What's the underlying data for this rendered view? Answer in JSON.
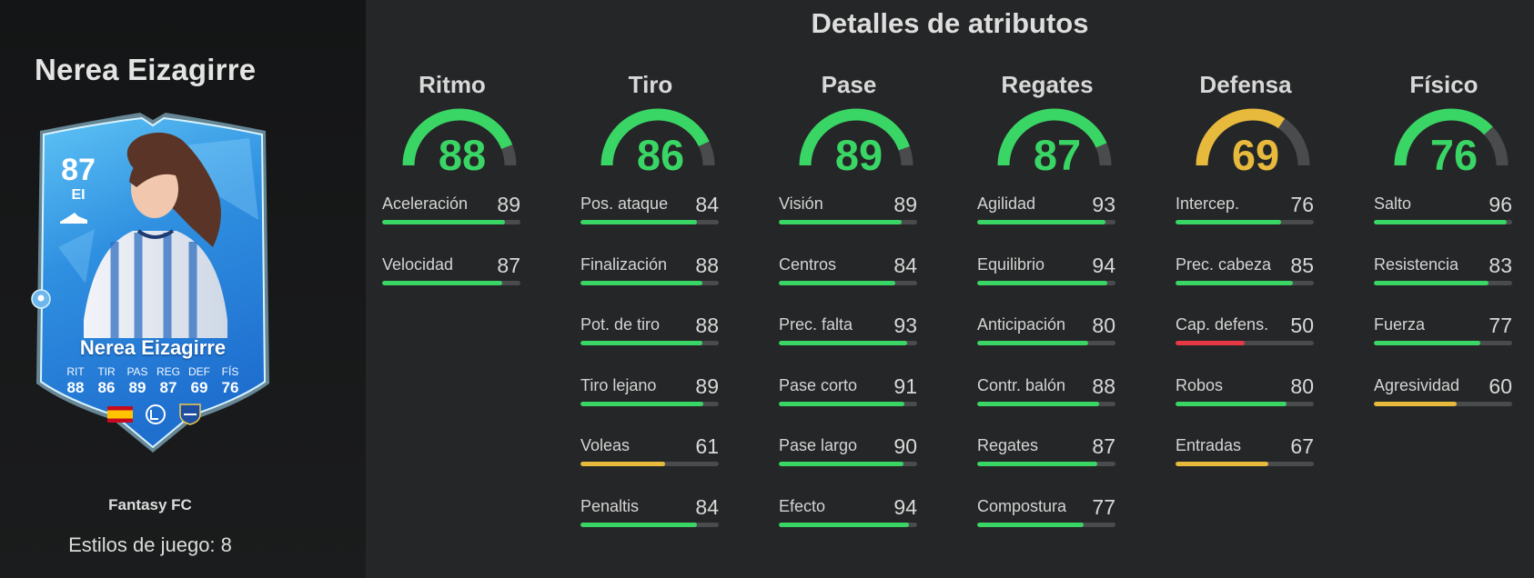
{
  "player": {
    "name": "Nerea Eizagirre",
    "version": "Fantasy FC",
    "playstyles": "Estilos de juego: 8",
    "card": {
      "rating": "87",
      "position": "EI",
      "name": "Nerea Eizagirre",
      "stats": [
        {
          "label": "RIT",
          "value": "88"
        },
        {
          "label": "TIR",
          "value": "86"
        },
        {
          "label": "PAS",
          "value": "89"
        },
        {
          "label": "REG",
          "value": "87"
        },
        {
          "label": "DEF",
          "value": "69"
        },
        {
          "label": "FÍS",
          "value": "76"
        }
      ],
      "badges": [
        "spain-flag-icon",
        "liga-f-icon",
        "real-sociedad-crest-icon"
      ]
    }
  },
  "section_title": "Detalles de atributos",
  "colors": {
    "green": "#39d565",
    "yellow": "#e7b93c",
    "red": "#e53945",
    "track": "#4a4b4c",
    "card_blue": "#2f8fe0"
  },
  "categories": [
    {
      "title": "Ritmo",
      "value": 88,
      "color": "green",
      "attributes": [
        {
          "label": "Aceleración",
          "value": 89,
          "color": "green"
        },
        {
          "label": "Velocidad",
          "value": 87,
          "color": "green"
        }
      ]
    },
    {
      "title": "Tiro",
      "value": 86,
      "color": "green",
      "attributes": [
        {
          "label": "Pos. ataque",
          "value": 84,
          "color": "green"
        },
        {
          "label": "Finalización",
          "value": 88,
          "color": "green"
        },
        {
          "label": "Pot. de tiro",
          "value": 88,
          "color": "green"
        },
        {
          "label": "Tiro lejano",
          "value": 89,
          "color": "green"
        },
        {
          "label": "Voleas",
          "value": 61,
          "color": "yellow"
        },
        {
          "label": "Penaltis",
          "value": 84,
          "color": "green"
        }
      ]
    },
    {
      "title": "Pase",
      "value": 89,
      "color": "green",
      "attributes": [
        {
          "label": "Visión",
          "value": 89,
          "color": "green"
        },
        {
          "label": "Centros",
          "value": 84,
          "color": "green"
        },
        {
          "label": "Prec. falta",
          "value": 93,
          "color": "green"
        },
        {
          "label": "Pase corto",
          "value": 91,
          "color": "green"
        },
        {
          "label": "Pase largo",
          "value": 90,
          "color": "green"
        },
        {
          "label": "Efecto",
          "value": 94,
          "color": "green"
        }
      ]
    },
    {
      "title": "Regates",
      "value": 87,
      "color": "green",
      "attributes": [
        {
          "label": "Agilidad",
          "value": 93,
          "color": "green"
        },
        {
          "label": "Equilibrio",
          "value": 94,
          "color": "green"
        },
        {
          "label": "Anticipación",
          "value": 80,
          "color": "green"
        },
        {
          "label": "Contr. balón",
          "value": 88,
          "color": "green"
        },
        {
          "label": "Regates",
          "value": 87,
          "color": "green"
        },
        {
          "label": "Compostura",
          "value": 77,
          "color": "green"
        }
      ]
    },
    {
      "title": "Defensa",
      "value": 69,
      "color": "yellow",
      "attributes": [
        {
          "label": "Intercep.",
          "value": 76,
          "color": "green"
        },
        {
          "label": "Prec. cabeza",
          "value": 85,
          "color": "green"
        },
        {
          "label": "Cap. defens.",
          "value": 50,
          "color": "red"
        },
        {
          "label": "Robos",
          "value": 80,
          "color": "green"
        },
        {
          "label": "Entradas",
          "value": 67,
          "color": "yellow"
        }
      ]
    },
    {
      "title": "Físico",
      "value": 76,
      "color": "green",
      "attributes": [
        {
          "label": "Salto",
          "value": 96,
          "color": "green"
        },
        {
          "label": "Resistencia",
          "value": 83,
          "color": "green"
        },
        {
          "label": "Fuerza",
          "value": 77,
          "color": "green"
        },
        {
          "label": "Agresividad",
          "value": 60,
          "color": "yellow"
        }
      ]
    }
  ]
}
